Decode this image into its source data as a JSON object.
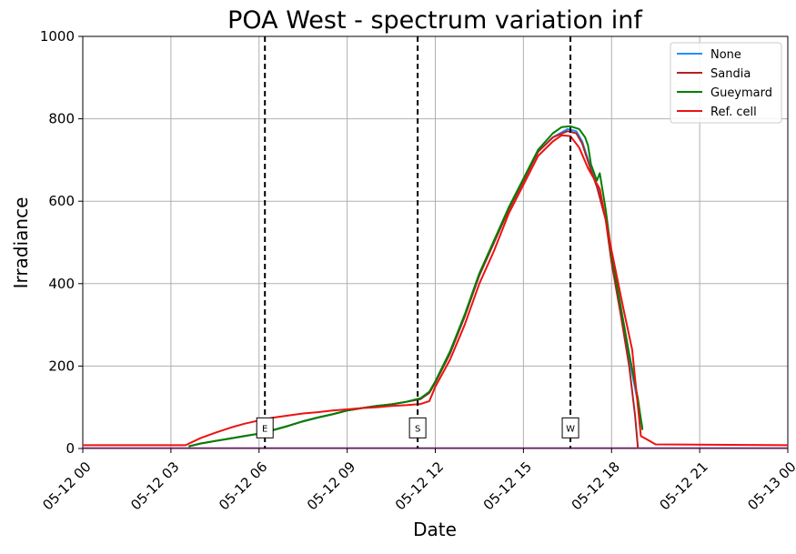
{
  "chart_data": {
    "type": "line",
    "title": "POA West - spectrum variation inf",
    "xlabel": "Date",
    "ylabel": "Irradiance",
    "xlim_hours": [
      0,
      24
    ],
    "ylim": [
      0,
      1000
    ],
    "grid": true,
    "legend_position": "top-right",
    "x_ticks": [
      {
        "hour": 0,
        "label": "05-12 00"
      },
      {
        "hour": 3,
        "label": "05-12 03"
      },
      {
        "hour": 6,
        "label": "05-12 06"
      },
      {
        "hour": 9,
        "label": "05-12 09"
      },
      {
        "hour": 12,
        "label": "05-12 12"
      },
      {
        "hour": 15,
        "label": "05-12 15"
      },
      {
        "hour": 18,
        "label": "05-12 18"
      },
      {
        "hour": 21,
        "label": "05-12 21"
      },
      {
        "hour": 24,
        "label": "05-13 00"
      }
    ],
    "y_ticks": [
      0,
      200,
      400,
      600,
      800,
      1000
    ],
    "vlines": [
      {
        "hour": 6.2,
        "label": "E"
      },
      {
        "hour": 11.4,
        "label": "S"
      },
      {
        "hour": 16.6,
        "label": "W"
      }
    ],
    "series": [
      {
        "name": "None",
        "color": "#1f8fff",
        "points": [
          [
            3.6,
            5
          ],
          [
            4.0,
            12
          ],
          [
            4.5,
            18
          ],
          [
            5.0,
            24
          ],
          [
            5.5,
            30
          ],
          [
            6.0,
            36
          ],
          [
            6.5,
            45
          ],
          [
            7.0,
            55
          ],
          [
            7.5,
            66
          ],
          [
            8.0,
            75
          ],
          [
            8.5,
            83
          ],
          [
            9.0,
            92
          ],
          [
            9.5,
            98
          ],
          [
            10.0,
            103
          ],
          [
            10.5,
            107
          ],
          [
            11.0,
            113
          ],
          [
            11.5,
            120
          ],
          [
            11.8,
            135
          ],
          [
            12.0,
            160
          ],
          [
            12.5,
            230
          ],
          [
            13.0,
            320
          ],
          [
            13.5,
            420
          ],
          [
            14.0,
            500
          ],
          [
            14.5,
            580
          ],
          [
            15.0,
            650
          ],
          [
            15.5,
            720
          ],
          [
            16.0,
            755
          ],
          [
            16.5,
            775
          ],
          [
            16.8,
            770
          ],
          [
            17.0,
            745
          ],
          [
            17.3,
            680
          ],
          [
            17.5,
            640
          ],
          [
            17.8,
            560
          ],
          [
            18.0,
            460
          ],
          [
            18.3,
            340
          ],
          [
            18.6,
            220
          ],
          [
            18.9,
            110
          ],
          [
            19.05,
            50
          ]
        ]
      },
      {
        "name": "Sandia",
        "color": "#b22222",
        "points": [
          [
            3.6,
            5
          ],
          [
            4.0,
            12
          ],
          [
            4.5,
            18
          ],
          [
            5.0,
            24
          ],
          [
            5.5,
            30
          ],
          [
            6.0,
            36
          ],
          [
            6.5,
            45
          ],
          [
            7.0,
            55
          ],
          [
            7.5,
            66
          ],
          [
            8.0,
            75
          ],
          [
            8.5,
            83
          ],
          [
            9.0,
            92
          ],
          [
            9.5,
            98
          ],
          [
            10.0,
            103
          ],
          [
            10.5,
            107
          ],
          [
            11.0,
            113
          ],
          [
            11.5,
            120
          ],
          [
            11.8,
            135
          ],
          [
            12.0,
            160
          ],
          [
            12.5,
            230
          ],
          [
            13.0,
            320
          ],
          [
            13.5,
            420
          ],
          [
            14.0,
            500
          ],
          [
            14.5,
            580
          ],
          [
            15.0,
            650
          ],
          [
            15.5,
            720
          ],
          [
            16.0,
            755
          ],
          [
            16.5,
            770
          ],
          [
            16.8,
            765
          ],
          [
            17.0,
            740
          ],
          [
            17.3,
            675
          ],
          [
            17.5,
            635
          ],
          [
            17.8,
            555
          ],
          [
            18.0,
            450
          ],
          [
            18.3,
            330
          ],
          [
            18.6,
            200
          ],
          [
            18.8,
            80
          ],
          [
            18.9,
            0
          ]
        ]
      },
      {
        "name": "Gueymard",
        "color": "#008000",
        "points": [
          [
            3.6,
            5
          ],
          [
            4.0,
            12
          ],
          [
            4.5,
            18
          ],
          [
            5.0,
            24
          ],
          [
            5.5,
            30
          ],
          [
            6.0,
            36
          ],
          [
            6.5,
            45
          ],
          [
            7.0,
            55
          ],
          [
            7.5,
            66
          ],
          [
            8.0,
            75
          ],
          [
            8.5,
            83
          ],
          [
            9.0,
            92
          ],
          [
            9.5,
            98
          ],
          [
            10.0,
            103
          ],
          [
            10.5,
            107
          ],
          [
            11.0,
            113
          ],
          [
            11.5,
            122
          ],
          [
            11.8,
            138
          ],
          [
            12.0,
            163
          ],
          [
            12.5,
            235
          ],
          [
            13.0,
            325
          ],
          [
            13.5,
            425
          ],
          [
            14.0,
            505
          ],
          [
            14.5,
            585
          ],
          [
            15.0,
            655
          ],
          [
            15.5,
            725
          ],
          [
            16.0,
            765
          ],
          [
            16.3,
            780
          ],
          [
            16.6,
            782
          ],
          [
            16.9,
            775
          ],
          [
            17.1,
            755
          ],
          [
            17.2,
            735
          ],
          [
            17.3,
            690
          ],
          [
            17.5,
            650
          ],
          [
            17.6,
            668
          ],
          [
            17.8,
            580
          ],
          [
            18.0,
            470
          ],
          [
            18.3,
            350
          ],
          [
            18.6,
            230
          ],
          [
            18.9,
            120
          ],
          [
            19.05,
            45
          ]
        ]
      },
      {
        "name": "Ref. cell",
        "color": "#ee1111",
        "points": [
          [
            0,
            8
          ],
          [
            3.5,
            8
          ],
          [
            4.0,
            25
          ],
          [
            4.5,
            38
          ],
          [
            5.0,
            50
          ],
          [
            5.5,
            60
          ],
          [
            6.0,
            68
          ],
          [
            6.5,
            75
          ],
          [
            7.0,
            80
          ],
          [
            7.5,
            85
          ],
          [
            8.0,
            88
          ],
          [
            8.5,
            92
          ],
          [
            9.0,
            95
          ],
          [
            9.5,
            98
          ],
          [
            10.0,
            100
          ],
          [
            10.5,
            103
          ],
          [
            11.0,
            105
          ],
          [
            11.5,
            108
          ],
          [
            11.8,
            115
          ],
          [
            12.0,
            150
          ],
          [
            12.5,
            215
          ],
          [
            13.0,
            300
          ],
          [
            13.5,
            400
          ],
          [
            14.0,
            480
          ],
          [
            14.5,
            570
          ],
          [
            15.0,
            640
          ],
          [
            15.5,
            710
          ],
          [
            16.0,
            745
          ],
          [
            16.3,
            760
          ],
          [
            16.6,
            758
          ],
          [
            16.9,
            730
          ],
          [
            17.2,
            680
          ],
          [
            17.6,
            630
          ],
          [
            18.0,
            480
          ],
          [
            18.4,
            340
          ],
          [
            18.7,
            240
          ],
          [
            18.9,
            100
          ],
          [
            19.0,
            30
          ],
          [
            19.3,
            18
          ],
          [
            19.5,
            10
          ],
          [
            24,
            8
          ]
        ]
      }
    ]
  }
}
